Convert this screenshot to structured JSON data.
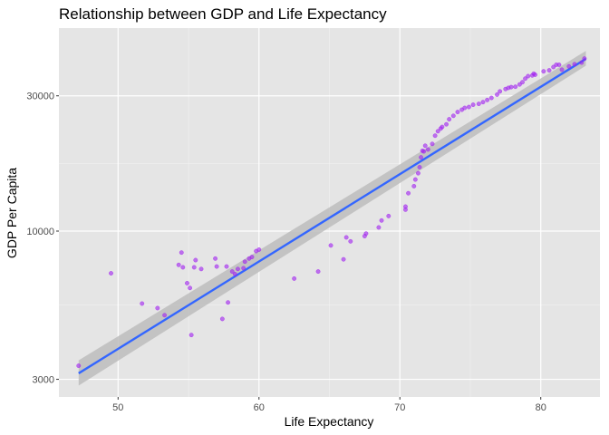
{
  "chart_data": {
    "type": "scatter",
    "title": "Relationship between GDP and Life Expectancy",
    "xlabel": "Life Expectancy",
    "ylabel": "GDP Per Capita",
    "x_ticks": [
      50,
      60,
      70,
      80
    ],
    "y_ticks": [
      3000,
      10000,
      30000
    ],
    "y_scale": "log10",
    "xlim": [
      45.8,
      84.2
    ],
    "ylim": [
      2600,
      52000
    ],
    "grid": true,
    "legend": "none",
    "colors": {
      "panel_background": "#e5e5e5",
      "grid_major": "#ffffff",
      "grid_minor": "#f2f2f2",
      "points": "#a020f0",
      "trend_line": "#3366ff",
      "confidence_band": "#bdbdbd"
    },
    "trend_line": {
      "method": "linear fit on log10(GDP)",
      "x": [
        47.2,
        83.2
      ],
      "y": [
        3150,
        40500
      ],
      "ci_lower": [
        2850,
        38300
      ],
      "ci_upper": [
        3500,
        43200
      ]
    },
    "series": [
      {
        "x": [
          47.2,
          49.5,
          51.7,
          52.8,
          53.3,
          54.3,
          54.5,
          54.6,
          54.9,
          55.1,
          55.2,
          55.4,
          55.5,
          55.9,
          56.9,
          57.0,
          57.4,
          57.7,
          57.8,
          58.1,
          58.3,
          58.5,
          58.9,
          59.0,
          59.3,
          59.5,
          59.8,
          60.0,
          62.5,
          64.2,
          65.1,
          66.0,
          66.2,
          66.5,
          67.5,
          67.6,
          68.5,
          68.7,
          69.2,
          70.4,
          70.4,
          70.6,
          71.0,
          71.1,
          71.3,
          71.4,
          71.5,
          71.6,
          71.7,
          71.8,
          72.0,
          72.3,
          72.5,
          72.7,
          72.9,
          73.0,
          73.3,
          73.5,
          73.8,
          74.1,
          74.4,
          74.6,
          74.9,
          75.2,
          75.6,
          75.9,
          76.2,
          76.5,
          76.9,
          77.1,
          77.5,
          77.7,
          77.9,
          78.2,
          78.5,
          78.7,
          78.9,
          79.1,
          79.4,
          79.5,
          79.6,
          80.2,
          80.6,
          80.9,
          81.1,
          81.3,
          81.5,
          82.0,
          82.4,
          82.9,
          83.1
        ],
        "y": [
          3350,
          7100,
          5550,
          5350,
          5050,
          7600,
          8400,
          7450,
          6550,
          6300,
          4300,
          7450,
          7900,
          7350,
          8000,
          7500,
          4900,
          7500,
          5600,
          7200,
          7050,
          7350,
          7400,
          7800,
          8000,
          8100,
          8500,
          8600,
          6800,
          7200,
          8900,
          7950,
          9500,
          9200,
          9600,
          9800,
          10300,
          10900,
          11300,
          11900,
          12200,
          13600,
          14400,
          15200,
          16000,
          16800,
          18200,
          19200,
          19100,
          20000,
          19400,
          20300,
          21700,
          22500,
          23000,
          23300,
          23800,
          24800,
          25500,
          26300,
          26800,
          27200,
          27400,
          27900,
          28100,
          28500,
          29000,
          29500,
          30300,
          31100,
          31700,
          32000,
          32200,
          32300,
          32900,
          33500,
          34500,
          35200,
          35400,
          35900,
          35600,
          36600,
          36900,
          37900,
          38600,
          38600,
          37100,
          38100,
          38800,
          39300,
          40600
        ]
      }
    ]
  }
}
